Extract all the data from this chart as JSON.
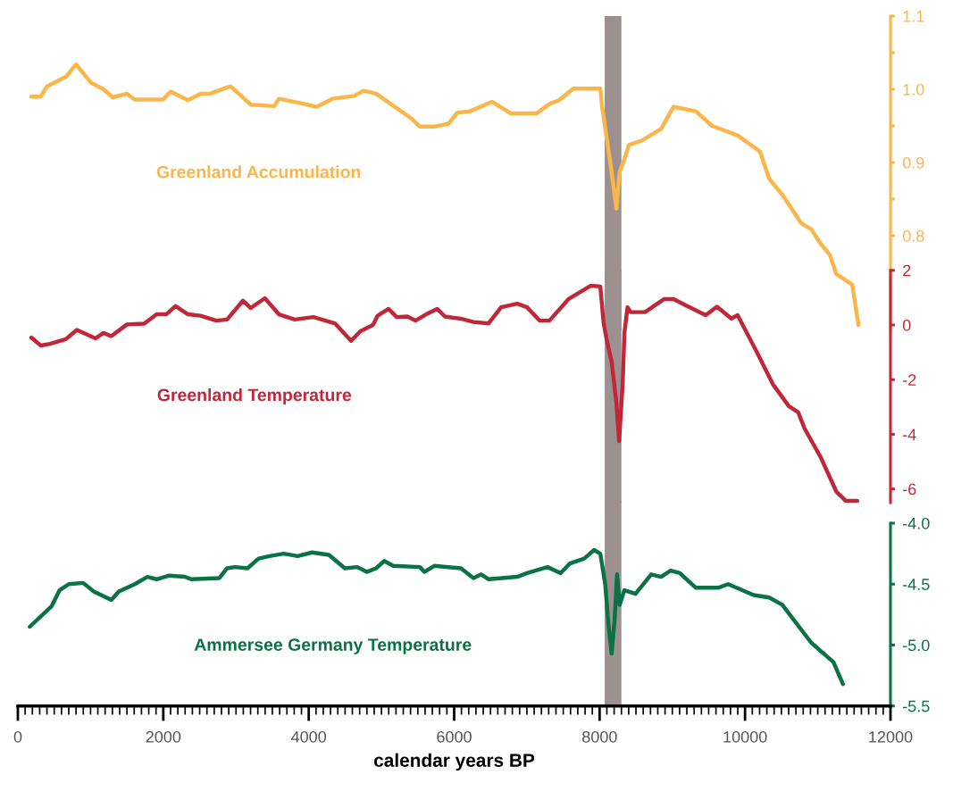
{
  "chart_data": [
    {
      "type": "line",
      "xlim": [
        0,
        12000
      ],
      "ylim": [
        0.67,
        1.1
      ],
      "yticks": [
        {
          "value": 0.8,
          "label": "0.8"
        },
        {
          "value": 0.85,
          "label": null
        },
        {
          "value": 0.9,
          "label": "0.9"
        },
        {
          "value": 0.95,
          "label": null
        },
        {
          "value": 1.0,
          "label": "1.0"
        },
        {
          "value": 1.05,
          "label": null
        },
        {
          "value": 1.1,
          "label": "1.1"
        }
      ],
      "tick_labels": "y",
      "grid": false,
      "bands": [
        {
          "axis": "x",
          "from": 8070,
          "to": 8300,
          "color": "#9c9090"
        }
      ],
      "x": [
        184,
        315,
        400,
        660,
        800,
        1005,
        1177,
        1306,
        1500,
        1609,
        1996,
        2101,
        2340,
        2513,
        2642,
        2923,
        3203,
        3526,
        3590,
        3894,
        4106,
        4324,
        4625,
        4754,
        4926,
        5400,
        5528,
        5725,
        5921,
        6044,
        6216,
        6520,
        6781,
        7134,
        7310,
        7441,
        7639,
        8010,
        8034,
        8096,
        8165,
        8231,
        8275,
        8341,
        8403,
        8582,
        8845,
        9017,
        9324,
        9545,
        9898,
        10205,
        10332,
        10512,
        10774,
        10909,
        11040,
        11167,
        11253,
        11474,
        11560
      ],
      "series": [
        {
          "name": "Greenland Accumulation",
          "color": "#fbb64a",
          "values": [
            0.99,
            0.99,
            1.004,
            1.017,
            1.034,
            1.009,
            1.0,
            0.989,
            0.994,
            0.986,
            0.986,
            0.997,
            0.985,
            0.994,
            0.994,
            1.004,
            0.979,
            0.977,
            0.987,
            0.981,
            0.976,
            0.987,
            0.991,
            0.998,
            0.994,
            0.961,
            0.949,
            0.949,
            0.953,
            0.968,
            0.97,
            0.983,
            0.967,
            0.967,
            0.98,
            0.985,
            1.001,
            1.001,
            0.976,
            0.935,
            0.887,
            0.837,
            0.887,
            0.904,
            0.924,
            0.93,
            0.946,
            0.976,
            0.97,
            0.95,
            0.937,
            0.915,
            0.878,
            0.856,
            0.817,
            0.809,
            0.789,
            0.774,
            0.748,
            0.733,
            0.678
          ]
        }
      ]
    },
    {
      "type": "line",
      "xlim": [
        0,
        12000
      ],
      "ylim": [
        -6.5,
        2
      ],
      "yticks": [
        {
          "value": -6,
          "label": "-6"
        },
        {
          "value": -4,
          "label": "-4"
        },
        {
          "value": -2,
          "label": "-2"
        },
        {
          "value": 0,
          "label": "0"
        },
        {
          "value": 2,
          "label": "2"
        }
      ],
      "tick_labels": "y",
      "grid": false,
      "bands": [
        {
          "axis": "x",
          "from": 8070,
          "to": 8300,
          "color": "#9c9090"
        }
      ],
      "x": [
        184,
        315,
        442,
        660,
        811,
        1069,
        1177,
        1285,
        1500,
        1737,
        1909,
        2039,
        2168,
        2340,
        2513,
        2727,
        2877,
        3096,
        3203,
        3397,
        3590,
        3807,
        4064,
        4364,
        4582,
        4711,
        4883,
        4948,
        5098,
        5209,
        5356,
        5467,
        5614,
        5768,
        5872,
        6091,
        6265,
        6474,
        6646,
        6867,
        7002,
        7174,
        7310,
        7573,
        7748,
        7880,
        8010,
        8055,
        8096,
        8165,
        8231,
        8268,
        8317,
        8341,
        8384,
        8428,
        8624,
        8889,
        9017,
        9197,
        9459,
        9613,
        9811,
        9898,
        10160,
        10381,
        10602,
        10732,
        10819,
        11040,
        11258,
        11388,
        11543
      ],
      "series": [
        {
          "name": "Greenland Temperature",
          "color": "#c0283a",
          "values": [
            -0.46,
            -0.75,
            -0.69,
            -0.52,
            -0.18,
            -0.49,
            -0.29,
            -0.41,
            0.02,
            0.05,
            0.39,
            0.39,
            0.69,
            0.39,
            0.34,
            0.16,
            0.2,
            0.89,
            0.62,
            0.98,
            0.39,
            0.2,
            0.29,
            0.05,
            -0.58,
            -0.23,
            0.0,
            0.34,
            0.59,
            0.29,
            0.31,
            0.16,
            0.39,
            0.59,
            0.31,
            0.23,
            0.11,
            0.06,
            0.65,
            0.78,
            0.65,
            0.16,
            0.16,
            0.95,
            1.23,
            1.44,
            1.41,
            0.07,
            -0.52,
            -1.34,
            -2.86,
            -4.25,
            -2.16,
            -0.29,
            0.65,
            0.47,
            0.47,
            0.95,
            0.95,
            0.7,
            0.36,
            0.67,
            0.24,
            0.36,
            -0.98,
            -2.16,
            -2.97,
            -3.2,
            -3.79,
            -4.84,
            -6.11,
            -6.44,
            -6.44
          ]
        }
      ]
    },
    {
      "type": "line",
      "xlim": [
        0,
        12000
      ],
      "xticks": [
        0,
        2000,
        4000,
        6000,
        8000,
        10000,
        12000
      ],
      "ylim": [
        -5.5,
        -4.0
      ],
      "yticks": [
        {
          "value": -5.5,
          "label": "-5.5"
        },
        {
          "value": -5.0,
          "label": "-5.0"
        },
        {
          "value": -4.5,
          "label": "-4.5"
        },
        {
          "value": -4.0,
          "label": "-4.0"
        }
      ],
      "xlabel": "calendar years BP",
      "grid": false,
      "bands": [
        {
          "axis": "x",
          "from": 8070,
          "to": 8300,
          "color": "#9c9090"
        }
      ],
      "x": [
        164,
        466,
        574,
        700,
        897,
        1044,
        1285,
        1388,
        1609,
        1781,
        1909,
        2082,
        2297,
        2383,
        2772,
        2877,
        2985,
        3158,
        3311,
        3461,
        3655,
        3848,
        4045,
        4278,
        4496,
        4668,
        4797,
        4926,
        5037,
        5160,
        5528,
        5590,
        5725,
        6093,
        6265,
        6372,
        6474,
        6867,
        7002,
        7285,
        7463,
        7592,
        7789,
        7924,
        8010,
        8077,
        8120,
        8165,
        8206,
        8240,
        8275,
        8341,
        8494,
        8710,
        8845,
        8977,
        9103,
        9324,
        9631,
        9767,
        10118,
        10332,
        10512,
        10909,
        11216,
        11346
      ],
      "series": [
        {
          "name": "Ammersee Germany Temperature",
          "color": "#0a7245",
          "values": [
            -4.85,
            -4.68,
            -4.55,
            -4.5,
            -4.49,
            -4.56,
            -4.63,
            -4.56,
            -4.5,
            -4.44,
            -4.46,
            -4.43,
            -4.44,
            -4.46,
            -4.45,
            -4.37,
            -4.36,
            -4.37,
            -4.29,
            -4.27,
            -4.25,
            -4.27,
            -4.24,
            -4.26,
            -4.37,
            -4.36,
            -4.4,
            -4.37,
            -4.31,
            -4.35,
            -4.36,
            -4.4,
            -4.35,
            -4.37,
            -4.45,
            -4.42,
            -4.46,
            -4.44,
            -4.41,
            -4.36,
            -4.41,
            -4.33,
            -4.29,
            -4.22,
            -4.25,
            -4.5,
            -4.82,
            -5.07,
            -4.8,
            -4.42,
            -4.67,
            -4.55,
            -4.58,
            -4.42,
            -4.44,
            -4.39,
            -4.41,
            -4.53,
            -4.53,
            -4.5,
            -4.59,
            -4.61,
            -4.67,
            -4.98,
            -5.14,
            -5.32
          ]
        }
      ]
    }
  ]
}
